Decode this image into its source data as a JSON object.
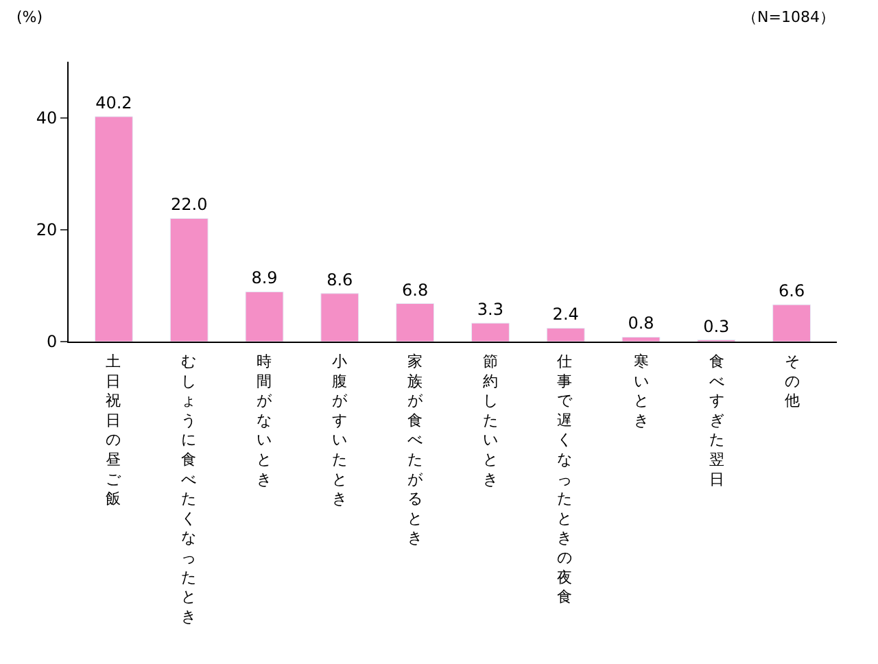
{
  "chart_data": {
    "type": "bar",
    "ylabel": "(%)",
    "annotations": [
      "（N=1084）"
    ],
    "categories": [
      "土日祝日の昼ご飯",
      "むしょうに食べたくなったとき",
      "時間がないとき",
      "小腹がすいたとき",
      "家族が食べたがるとき",
      "節約したいとき",
      "仕事で遅くなったときの夜食",
      "寒いとき",
      "食べすぎた翌日",
      "その他"
    ],
    "values": [
      40.2,
      22.0,
      8.9,
      8.6,
      6.8,
      3.3,
      2.4,
      0.8,
      0.3,
      6.6
    ],
    "value_labels": [
      "40.2",
      "22.0",
      "8.9",
      "8.6",
      "6.8",
      "3.3",
      "2.4",
      "0.8",
      "0.3",
      "6.6"
    ],
    "color": "#f48fc6",
    "ylim": [
      0,
      50
    ],
    "yticks": [
      0,
      20,
      40
    ],
    "grid": false,
    "legend": false
  }
}
